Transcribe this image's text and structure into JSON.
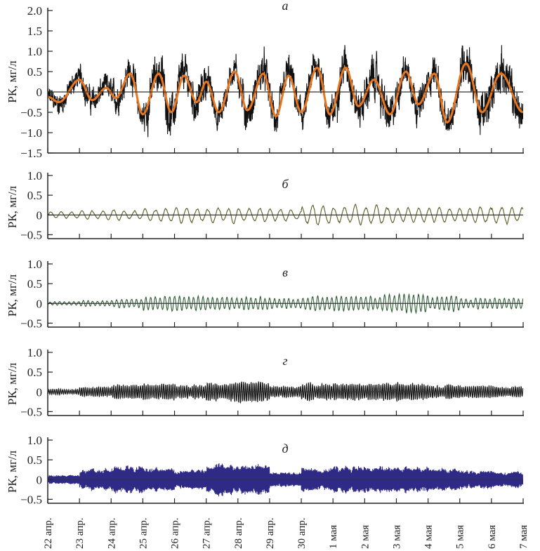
{
  "chart_data": [
    {
      "type": "line",
      "panel": "а",
      "ylabel": "РК, мг/л",
      "ylim": [
        -1.5,
        2.0
      ],
      "yticks": [
        "2.0",
        "1.5",
        "1.0",
        "0.5",
        "0",
        "−0.5",
        "−1.0",
        "−1.5"
      ],
      "ytick_values": [
        2.0,
        1.5,
        1.0,
        0.5,
        0,
        -0.5,
        -1.0,
        -1.5
      ],
      "series": [
        {
          "name": "raw",
          "color": "#111111",
          "noise_amplitude_by_day": [
            0.3,
            0.35,
            0.4,
            0.55,
            0.5,
            0.4,
            0.5,
            0.45,
            0.45,
            0.5,
            0.55,
            0.45,
            0.45,
            0.6,
            0.55
          ]
        },
        {
          "name": "fit",
          "color": "#e8761e",
          "extrema": [
            [
              0,
              -0.12
            ],
            [
              0.35,
              -0.25
            ],
            [
              1.0,
              0.3
            ],
            [
              1.4,
              -0.2
            ],
            [
              1.85,
              0.1
            ],
            [
              2.15,
              -0.15
            ],
            [
              2.6,
              0.45
            ],
            [
              3.0,
              -0.55
            ],
            [
              3.5,
              0.45
            ],
            [
              3.9,
              -0.5
            ],
            [
              4.3,
              0.4
            ],
            [
              4.7,
              -0.25
            ],
            [
              5.0,
              0.25
            ],
            [
              5.4,
              -0.5
            ],
            [
              5.9,
              0.5
            ],
            [
              6.3,
              -0.45
            ],
            [
              6.8,
              0.45
            ],
            [
              7.2,
              -0.6
            ],
            [
              7.6,
              0.4
            ],
            [
              8.0,
              -0.5
            ],
            [
              8.5,
              0.6
            ],
            [
              8.9,
              -0.55
            ],
            [
              9.4,
              0.6
            ],
            [
              9.8,
              -0.35
            ],
            [
              10.3,
              0.3
            ],
            [
              10.8,
              -0.55
            ],
            [
              11.3,
              0.5
            ],
            [
              11.7,
              -0.3
            ],
            [
              12.2,
              0.45
            ],
            [
              12.6,
              -0.75
            ],
            [
              13.2,
              0.7
            ],
            [
              13.7,
              -0.5
            ],
            [
              14.3,
              0.45
            ],
            [
              15,
              -0.5
            ]
          ]
        }
      ]
    },
    {
      "type": "line",
      "panel": "б",
      "ylabel": "РК, мг/л",
      "ylim": [
        -0.6,
        1.0
      ],
      "yticks": [
        "1.0",
        "0.5",
        "0",
        "−0.5"
      ],
      "ytick_values": [
        1.0,
        0.5,
        0,
        -0.5
      ],
      "series": [
        {
          "name": "component б",
          "color": "#5c5c22",
          "period_days": 0.33,
          "amplitude_by_day": [
            0.1,
            0.12,
            0.15,
            0.18,
            0.2,
            0.22,
            0.2,
            0.18,
            0.28,
            0.25,
            0.25,
            0.2,
            0.2,
            0.2,
            0.25
          ]
        }
      ]
    },
    {
      "type": "line",
      "panel": "в",
      "ylabel": "РК, мг/л",
      "ylim": [
        -0.6,
        1.0
      ],
      "yticks": [
        "1.0",
        "0.5",
        "0",
        "−0.5"
      ],
      "ytick_values": [
        1.0,
        0.5,
        0,
        -0.5
      ],
      "series": [
        {
          "name": "component в",
          "color": "#2f5e35",
          "period_days": 0.15,
          "amplitude_by_day": [
            0.05,
            0.08,
            0.12,
            0.2,
            0.2,
            0.18,
            0.18,
            0.15,
            0.18,
            0.2,
            0.25,
            0.25,
            0.2,
            0.15,
            0.15
          ]
        }
      ]
    },
    {
      "type": "line",
      "panel": "г",
      "ylabel": "РК, мг/л",
      "ylim": [
        -0.6,
        1.0
      ],
      "yticks": [
        "1.0",
        "0.5",
        "0",
        "−0.5"
      ],
      "ytick_values": [
        1.0,
        0.5,
        0,
        -0.5
      ],
      "series": [
        {
          "name": "component г",
          "color": "#111111",
          "period_days": 0.06,
          "amplitude_by_day": [
            0.08,
            0.15,
            0.2,
            0.22,
            0.2,
            0.25,
            0.28,
            0.15,
            0.22,
            0.25,
            0.25,
            0.25,
            0.2,
            0.18,
            0.15
          ]
        }
      ]
    },
    {
      "type": "line",
      "panel": "д",
      "ylabel": "РК, мг/л",
      "ylim": [
        -0.6,
        1.0
      ],
      "yticks": [
        "1.0",
        "0.5",
        "0",
        "−0.5"
      ],
      "ytick_values": [
        1.0,
        0.5,
        0,
        -0.5
      ],
      "series": [
        {
          "name": "component д",
          "color": "#2e2a86",
          "period_days": 0.025,
          "amplitude_by_day": [
            0.12,
            0.3,
            0.35,
            0.35,
            0.25,
            0.4,
            0.4,
            0.2,
            0.3,
            0.35,
            0.35,
            0.35,
            0.3,
            0.25,
            0.2
          ]
        }
      ]
    }
  ],
  "xticks": [
    "22 апр.",
    "23 апр.",
    "24 апр.",
    "25 апр.",
    "26 апр.",
    "27 апр.",
    "28 апр.",
    "29 апр.",
    "30 апр.",
    "1 мая",
    "2 мая",
    "3 мая",
    "4 мая",
    "5 мая",
    "6 мая",
    "7 мая"
  ],
  "xlim_days": [
    0,
    15
  ]
}
